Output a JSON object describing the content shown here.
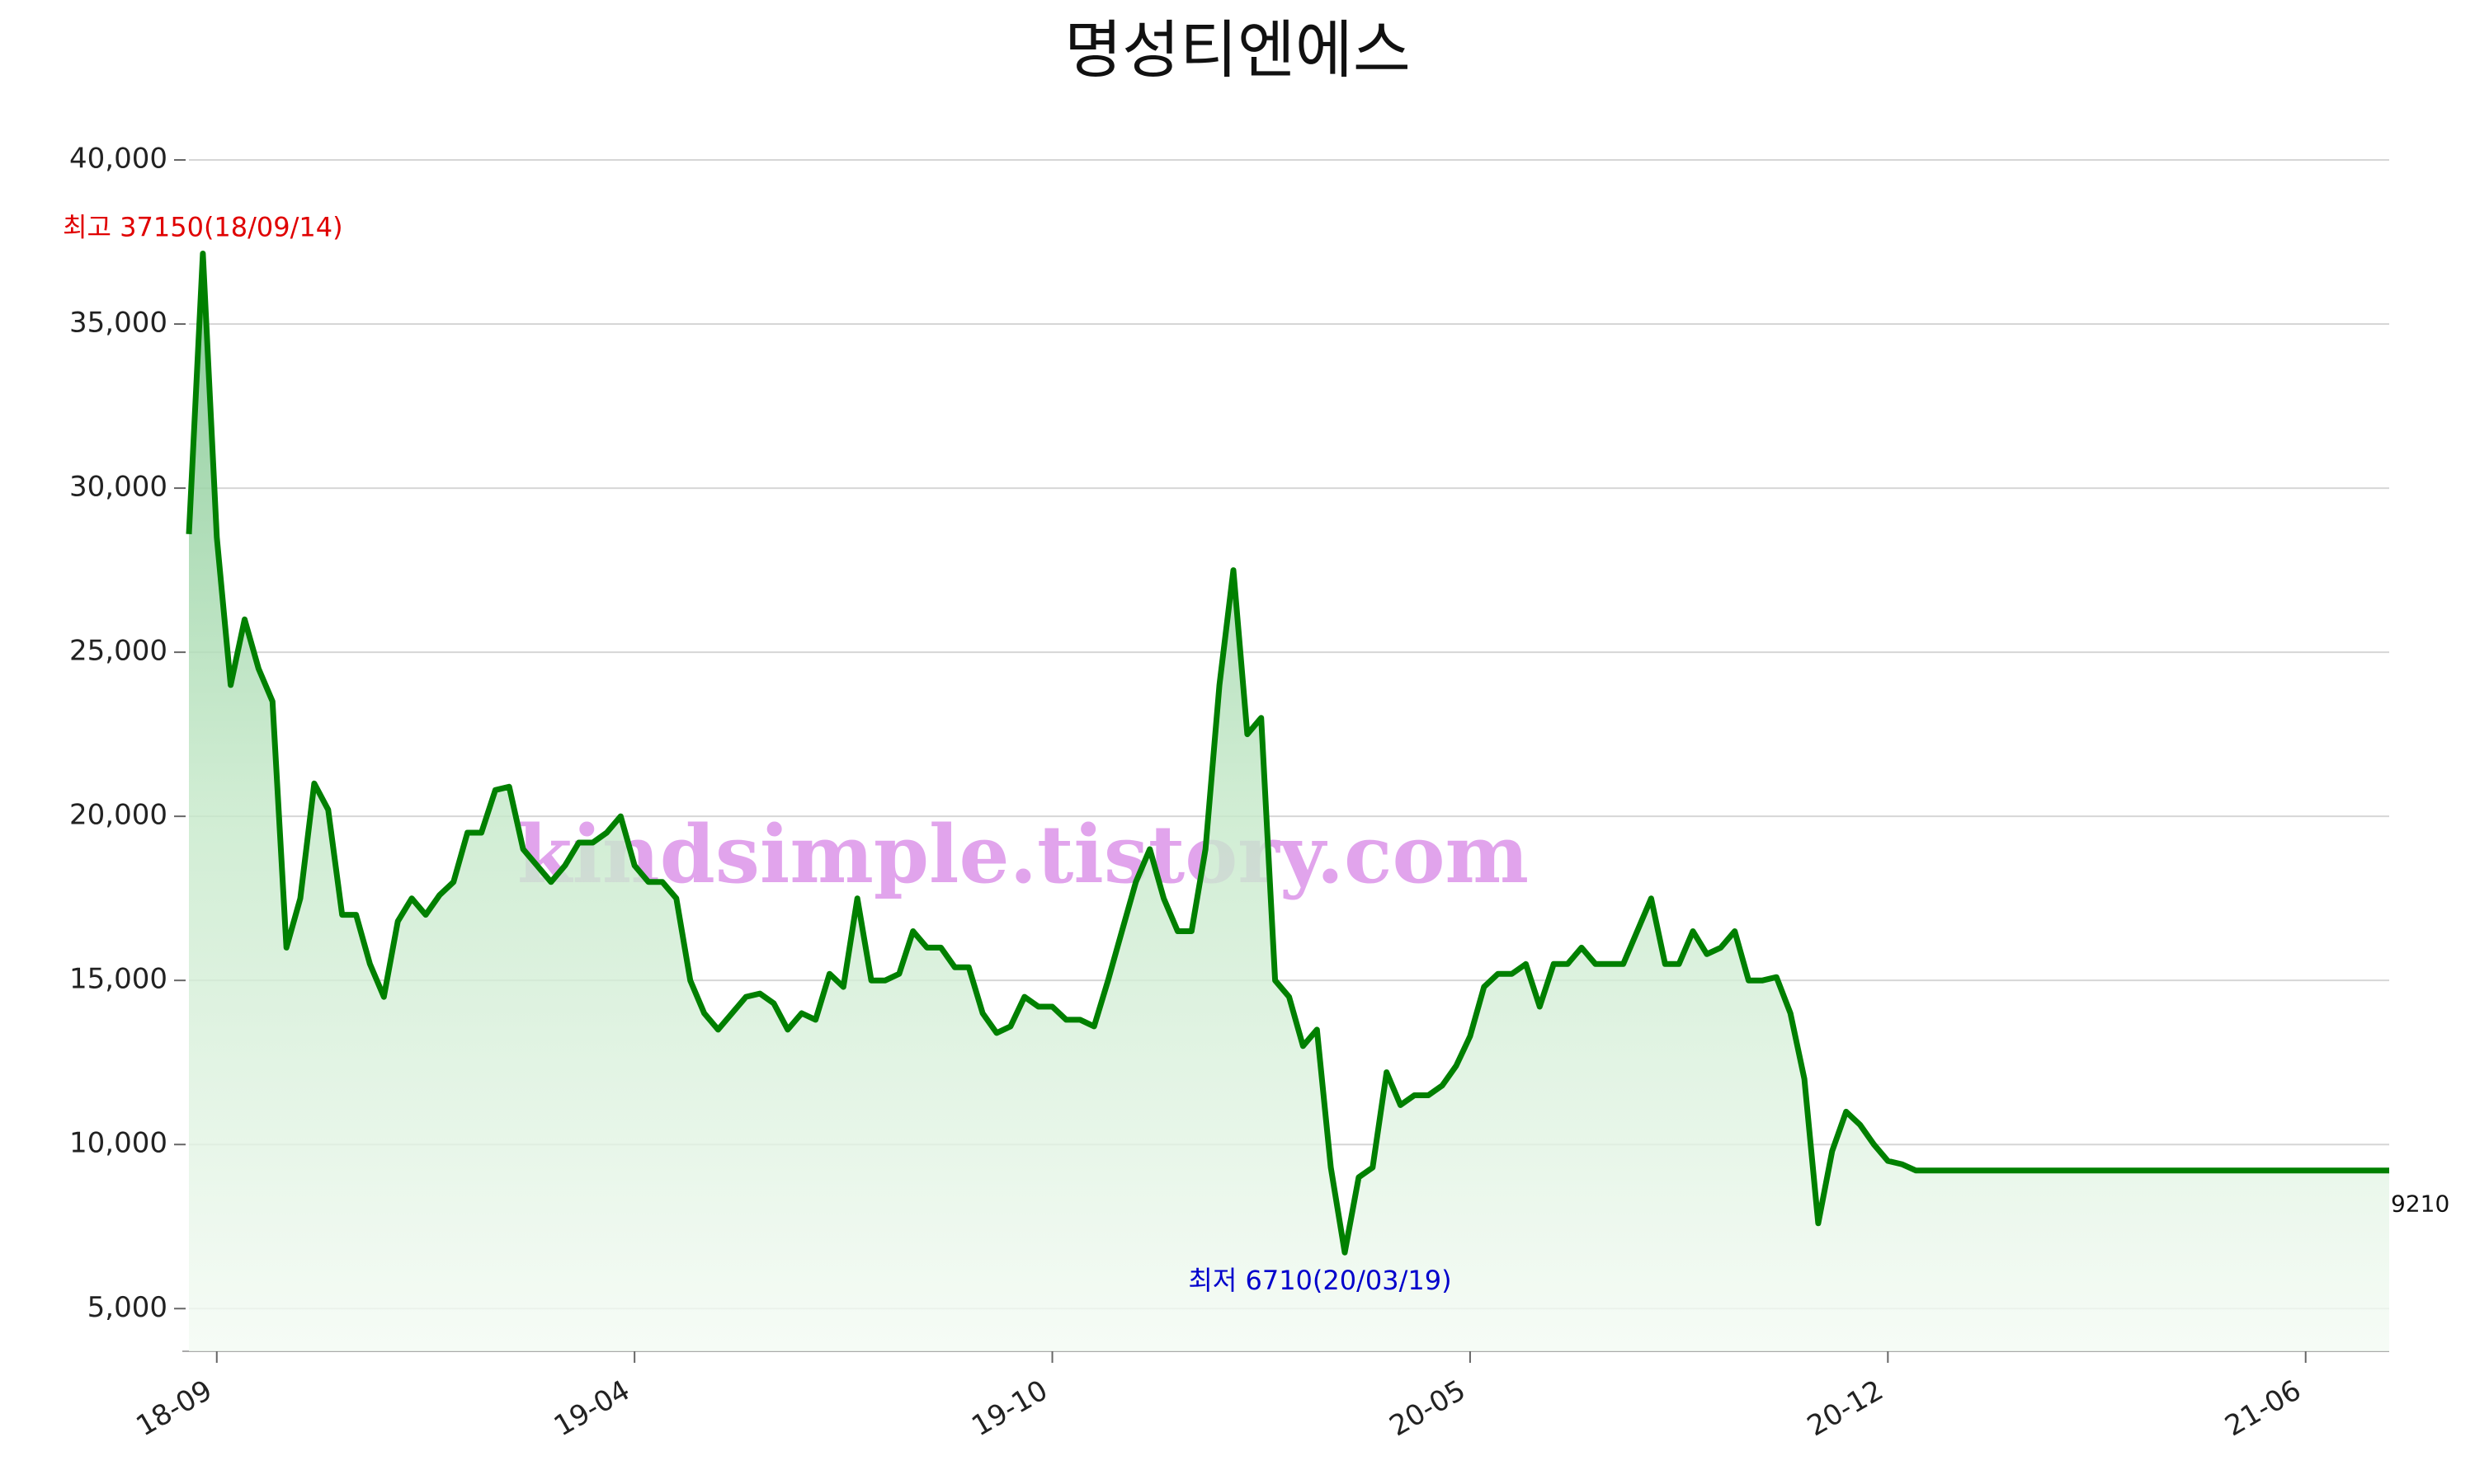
{
  "chart_data": {
    "type": "line",
    "title": "명성티엔에스",
    "watermark": "kindsimple.tistory.com",
    "max_annotation": "최고 37150(18/09/14)",
    "min_annotation": "최저 6710(20/03/19)",
    "color": "#008000",
    "grid": true,
    "ylim": [
      3700,
      40000
    ],
    "yticks": [
      {
        "value": 5000,
        "label": "5,000"
      },
      {
        "value": 10000,
        "label": "10,000"
      },
      {
        "value": 15000,
        "label": "15,000"
      },
      {
        "value": 20000,
        "label": "20,000"
      },
      {
        "value": 25000,
        "label": "25,000"
      },
      {
        "value": 30000,
        "label": "30,000"
      },
      {
        "value": 35000,
        "label": "35,000"
      },
      {
        "value": 40000,
        "label": "40,000"
      }
    ],
    "categories": [
      null,
      null,
      "18-09",
      null,
      null,
      null,
      null,
      null,
      null,
      null,
      null,
      null,
      null,
      null,
      null,
      null,
      null,
      null,
      null,
      null,
      null,
      null,
      null,
      null,
      null,
      null,
      null,
      null,
      null,
      null,
      null,
      null,
      "19-04",
      null,
      null,
      null,
      null,
      null,
      null,
      null,
      null,
      null,
      null,
      null,
      null,
      null,
      null,
      null,
      null,
      null,
      null,
      null,
      null,
      null,
      null,
      null,
      null,
      null,
      null,
      null,
      null,
      null,
      "19-10",
      null,
      null,
      null,
      null,
      null,
      null,
      null,
      null,
      null,
      null,
      null,
      null,
      null,
      null,
      null,
      null,
      null,
      null,
      null,
      null,
      null,
      null,
      null,
      null,
      null,
      null,
      null,
      null,
      null,
      "20-05",
      null,
      null,
      null,
      null,
      null,
      null,
      null,
      null,
      null,
      null,
      null,
      null,
      null,
      null,
      null,
      null,
      null,
      null,
      null,
      null,
      null,
      null,
      null,
      null,
      null,
      null,
      null,
      null,
      null,
      "20-12",
      null,
      null,
      null,
      null,
      null,
      null,
      null,
      null,
      null,
      null,
      null,
      null,
      null,
      null,
      null,
      null,
      null,
      null,
      null,
      null,
      null,
      null,
      null,
      null,
      null,
      null,
      null,
      null,
      null,
      "21-06",
      null,
      null,
      null,
      null,
      null,
      null
    ],
    "values": [
      28600,
      37150,
      28500,
      24000,
      26000,
      24500,
      23500,
      16000,
      17500,
      21000,
      20200,
      17000,
      17000,
      15500,
      14500,
      16800,
      17500,
      17000,
      17600,
      18000,
      19500,
      19500,
      20800,
      20900,
      19000,
      18500,
      18000,
      18500,
      19200,
      19200,
      19500,
      20000,
      18500,
      18000,
      18000,
      17500,
      15000,
      14000,
      13500,
      14000,
      14500,
      14600,
      14300,
      13500,
      14000,
      13800,
      15200,
      14800,
      17500,
      15000,
      15000,
      15200,
      16500,
      16000,
      16000,
      15400,
      15400,
      14000,
      13400,
      13600,
      14500,
      14200,
      14200,
      13800,
      13800,
      13600,
      15000,
      16500,
      18000,
      19000,
      17500,
      16500,
      16500,
      19000,
      24000,
      27500,
      22500,
      23000,
      15000,
      14500,
      13000,
      13500,
      9300,
      6710,
      9000,
      9300,
      12200,
      11200,
      11500,
      11500,
      11800,
      12400,
      13300,
      14800,
      15200,
      15200,
      15500,
      14200,
      15500,
      15500,
      16000,
      15500,
      15500,
      15500,
      16500,
      17500,
      15500,
      15500,
      16500,
      15800,
      16000,
      16500,
      15000,
      15000,
      15100,
      14000,
      12000,
      7600,
      9800,
      11000,
      10600,
      10000,
      9500,
      9400,
      9210,
      9210,
      9210,
      9210,
      9210,
      9210,
      9210,
      9210,
      9210,
      9210,
      9210,
      9210,
      9210,
      9210,
      9210,
      9210,
      9210,
      9210,
      9210,
      9210,
      9210,
      9210,
      9210,
      9210,
      9210,
      9210,
      9210,
      9210,
      9210,
      9210,
      9210,
      9210,
      9210,
      9210,
      9210
    ]
  }
}
